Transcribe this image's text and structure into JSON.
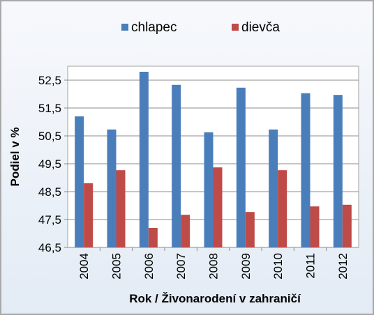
{
  "chart_data": {
    "type": "bar",
    "categories": [
      "2004",
      "2005",
      "2006",
      "2007",
      "2008",
      "2009",
      "2010",
      "2011",
      "2012"
    ],
    "series": [
      {
        "name": "chlapec",
        "values": [
          51.2,
          50.73,
          52.8,
          52.33,
          50.63,
          52.23,
          50.73,
          52.03,
          51.97
        ]
      },
      {
        "name": "dievča",
        "values": [
          48.8,
          49.27,
          47.2,
          47.67,
          49.37,
          47.77,
          49.27,
          47.97,
          48.03
        ]
      }
    ],
    "series_colors": [
      "#4a7ebb",
      "#be4b48"
    ],
    "title": "",
    "xlabel": "Rok / Živonarodení v zahraničí",
    "ylabel": "Podiel v %",
    "ylim": [
      46.5,
      53.0
    ],
    "yticks": [
      "46,5",
      "47,5",
      "48,5",
      "49,5",
      "50,5",
      "51,5",
      "52,5"
    ],
    "ytick_values": [
      46.5,
      47.5,
      48.5,
      49.5,
      50.5,
      51.5,
      52.5
    ],
    "grid": true,
    "legend_position": "top"
  }
}
